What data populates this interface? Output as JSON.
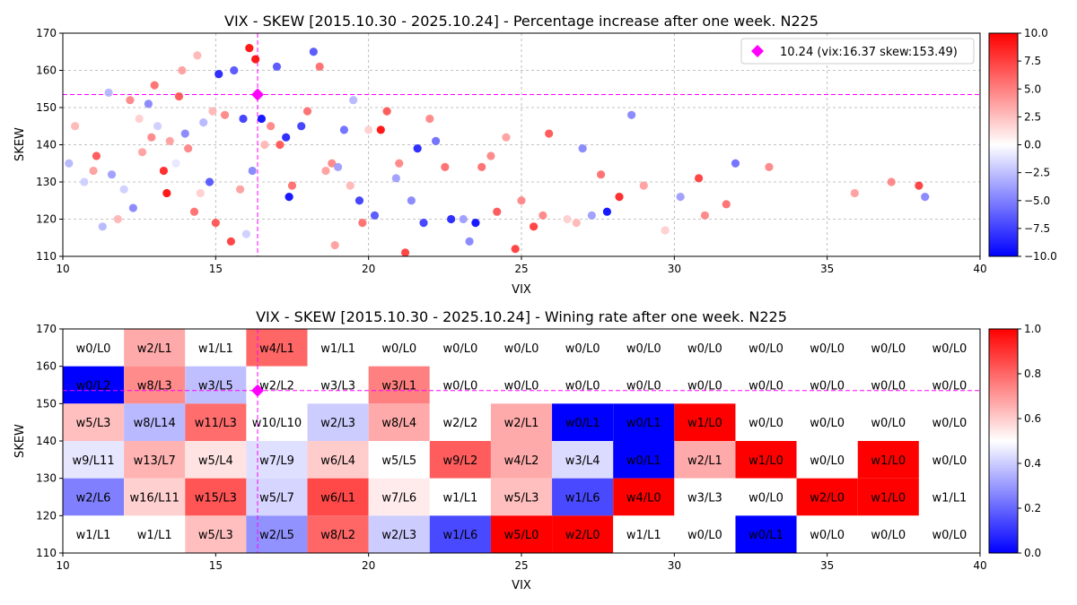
{
  "chart_data": [
    {
      "type": "scatter",
      "title": "VIX - SKEW [2015.10.30 - 2025.10.24]  - Percentage increase after one week. N225",
      "xlabel": "VIX",
      "ylabel": "SKEW",
      "xlim": [
        10,
        40
      ],
      "ylim": [
        110,
        170
      ],
      "xticks": [
        10,
        15,
        20,
        25,
        30,
        35,
        40
      ],
      "yticks": [
        110,
        120,
        130,
        140,
        150,
        160,
        170
      ],
      "grid": true,
      "colorbar": {
        "min": -10,
        "max": 10,
        "ticks": [
          "10.0",
          "7.5",
          "5.0",
          "2.5",
          "0.0",
          "−2.5",
          "−5.0",
          "−7.5",
          "−10.0"
        ],
        "colormap": "bwr"
      },
      "legend": {
        "label": "10.24 (vix:16.37 skew:153.49)",
        "position": "top-right",
        "marker_color": "#ff00ff"
      },
      "current": {
        "x": 16.37,
        "y": 153.49
      },
      "points": [
        [
          10.2,
          135,
          -3
        ],
        [
          10.4,
          145,
          3
        ],
        [
          10.7,
          130,
          -2
        ],
        [
          11.0,
          133,
          4
        ],
        [
          11.1,
          137,
          7
        ],
        [
          11.3,
          118,
          -3
        ],
        [
          11.6,
          132,
          -4
        ],
        [
          11.8,
          120,
          3
        ],
        [
          12.0,
          128,
          -2
        ],
        [
          12.2,
          152,
          5
        ],
        [
          12.3,
          123,
          -5
        ],
        [
          12.5,
          147,
          2
        ],
        [
          12.6,
          138,
          4
        ],
        [
          12.8,
          151,
          -5
        ],
        [
          13.0,
          156,
          6
        ],
        [
          13.1,
          145,
          -2
        ],
        [
          13.3,
          133,
          9
        ],
        [
          13.4,
          127,
          10
        ],
        [
          13.5,
          141,
          4
        ],
        [
          13.7,
          135,
          -1
        ],
        [
          13.8,
          153,
          7
        ],
        [
          14.0,
          143,
          -5
        ],
        [
          14.1,
          139,
          5
        ],
        [
          14.3,
          122,
          6
        ],
        [
          14.5,
          127,
          2
        ],
        [
          14.6,
          146,
          -3
        ],
        [
          14.8,
          130,
          -7
        ],
        [
          14.9,
          149,
          3
        ],
        [
          15.0,
          119,
          7
        ],
        [
          15.1,
          159,
          -9
        ],
        [
          15.3,
          148,
          5
        ],
        [
          15.5,
          114,
          8
        ],
        [
          15.6,
          160,
          -7
        ],
        [
          15.8,
          128,
          4
        ],
        [
          15.9,
          147,
          -8
        ],
        [
          16.1,
          166,
          10
        ],
        [
          16.2,
          133,
          -5
        ],
        [
          16.3,
          163,
          10
        ],
        [
          16.5,
          147,
          -10
        ],
        [
          16.6,
          140,
          3
        ],
        [
          16.8,
          145,
          5
        ],
        [
          17.0,
          161,
          -7
        ],
        [
          17.1,
          140,
          7
        ],
        [
          17.3,
          142,
          -9
        ],
        [
          17.4,
          126,
          -10
        ],
        [
          17.5,
          129,
          6
        ],
        [
          17.8,
          145,
          -8
        ],
        [
          18.0,
          149,
          6
        ],
        [
          18.2,
          165,
          -7
        ],
        [
          18.4,
          161,
          6
        ],
        [
          18.6,
          133,
          4
        ],
        [
          18.8,
          135,
          5
        ],
        [
          19.0,
          134,
          -4
        ],
        [
          19.2,
          144,
          -6
        ],
        [
          19.4,
          129,
          3
        ],
        [
          19.7,
          125,
          -8
        ],
        [
          19.8,
          119,
          6
        ],
        [
          20.0,
          144,
          2
        ],
        [
          20.2,
          121,
          -7
        ],
        [
          20.4,
          144,
          10
        ],
        [
          20.6,
          149,
          7
        ],
        [
          20.9,
          131,
          -4
        ],
        [
          21.2,
          111,
          8
        ],
        [
          21.4,
          125,
          -5
        ],
        [
          21.6,
          139,
          -9
        ],
        [
          21.8,
          119,
          -8
        ],
        [
          22.0,
          147,
          5
        ],
        [
          22.2,
          141,
          -6
        ],
        [
          22.5,
          134,
          6
        ],
        [
          22.7,
          120,
          -9
        ],
        [
          23.1,
          120,
          -4
        ],
        [
          23.3,
          114,
          -5
        ],
        [
          23.5,
          119,
          -10
        ],
        [
          23.7,
          134,
          6
        ],
        [
          24.0,
          137,
          5
        ],
        [
          24.2,
          122,
          7
        ],
        [
          24.5,
          142,
          4
        ],
        [
          24.8,
          112,
          8
        ],
        [
          25.0,
          125,
          5
        ],
        [
          25.4,
          118,
          8
        ],
        [
          25.7,
          121,
          5
        ],
        [
          25.9,
          143,
          7
        ],
        [
          26.5,
          120,
          2
        ],
        [
          27.0,
          139,
          -5
        ],
        [
          27.3,
          121,
          -4
        ],
        [
          27.6,
          132,
          6
        ],
        [
          27.8,
          122,
          -10
        ],
        [
          28.2,
          126,
          9
        ],
        [
          28.6,
          148,
          -5
        ],
        [
          29.0,
          129,
          4
        ],
        [
          29.7,
          117,
          2
        ],
        [
          30.2,
          126,
          -4
        ],
        [
          30.8,
          131,
          8
        ],
        [
          31.0,
          121,
          5
        ],
        [
          31.7,
          124,
          6
        ],
        [
          32.0,
          135,
          -6
        ],
        [
          33.1,
          134,
          5
        ],
        [
          35.9,
          127,
          4
        ],
        [
          37.1,
          130,
          5
        ],
        [
          38.0,
          129,
          8
        ],
        [
          38.2,
          126,
          -5
        ],
        [
          13.9,
          160,
          4
        ],
        [
          14.4,
          164,
          3
        ],
        [
          12.9,
          142,
          5
        ],
        [
          11.5,
          154,
          -3
        ],
        [
          16.0,
          116,
          -2
        ],
        [
          18.9,
          113,
          4
        ],
        [
          21.0,
          135,
          5
        ],
        [
          26.8,
          119,
          3
        ],
        [
          19.5,
          152,
          -3
        ]
      ]
    },
    {
      "type": "heatmap",
      "title": "VIX - SKEW [2015.10.30 - 2025.10.24]  - Wining rate after one week. N225",
      "xlabel": "VIX",
      "ylabel": "SKEW",
      "xlim": [
        10,
        40
      ],
      "ylim": [
        110,
        170
      ],
      "xticks": [
        10,
        15,
        20,
        25,
        30,
        35,
        40
      ],
      "yticks": [
        110,
        120,
        130,
        140,
        150,
        160,
        170
      ],
      "x_bin_width": 2,
      "y_bin_height": 10,
      "colorbar": {
        "min": 0,
        "max": 1,
        "ticks": [
          "1.0",
          "0.8",
          "0.6",
          "0.4",
          "0.2",
          "0.0"
        ],
        "colormap": "bwr"
      },
      "current": {
        "x": 16.37,
        "y": 153.49
      },
      "rows_top_to_bottom": [
        [
          "w0/L0",
          "w2/L1",
          "w1/L1",
          "w4/L1",
          "w1/L1",
          "w0/L0",
          "w0/L0",
          "w0/L0",
          "w0/L0",
          "w0/L0",
          "w0/L0",
          "w0/L0",
          "w0/L0",
          "w0/L0",
          "w0/L0"
        ],
        [
          "w0/L2",
          "w8/L3",
          "w3/L5",
          "w2/L2",
          "w3/L3",
          "w3/L1",
          "w0/L0",
          "w0/L0",
          "w0/L0",
          "w0/L0",
          "w0/L0",
          "w0/L0",
          "w0/L0",
          "w0/L0",
          "w0/L0"
        ],
        [
          "w5/L3",
          "w8/L14",
          "w11/L3",
          "w10/L10",
          "w2/L3",
          "w8/L4",
          "w2/L2",
          "w2/L1",
          "w0/L1",
          "w0/L1",
          "w1/L0",
          "w0/L0",
          "w0/L0",
          "w0/L0",
          "w0/L0"
        ],
        [
          "w9/L11",
          "w13/L7",
          "w5/L4",
          "w7/L9",
          "w6/L4",
          "w5/L5",
          "w9/L2",
          "w4/L2",
          "w3/L4",
          "w0/L1",
          "w2/L1",
          "w1/L0",
          "w0/L0",
          "w1/L0",
          "w0/L0"
        ],
        [
          "w2/L6",
          "w16/L11",
          "w15/L3",
          "w5/L7",
          "w6/L1",
          "w7/L6",
          "w1/L1",
          "w5/L3",
          "w1/L6",
          "w4/L0",
          "w3/L3",
          "w0/L0",
          "w2/L0",
          "w1/L0",
          "w1/L1"
        ],
        [
          "w1/L1",
          "w1/L1",
          "w5/L3",
          "w2/L5",
          "w8/L2",
          "w2/L3",
          "w1/L6",
          "w5/L0",
          "w2/L0",
          "w1/L1",
          "w0/L0",
          "w0/L1",
          "w0/L0",
          "w0/L0",
          "w0/L0"
        ]
      ]
    }
  ]
}
